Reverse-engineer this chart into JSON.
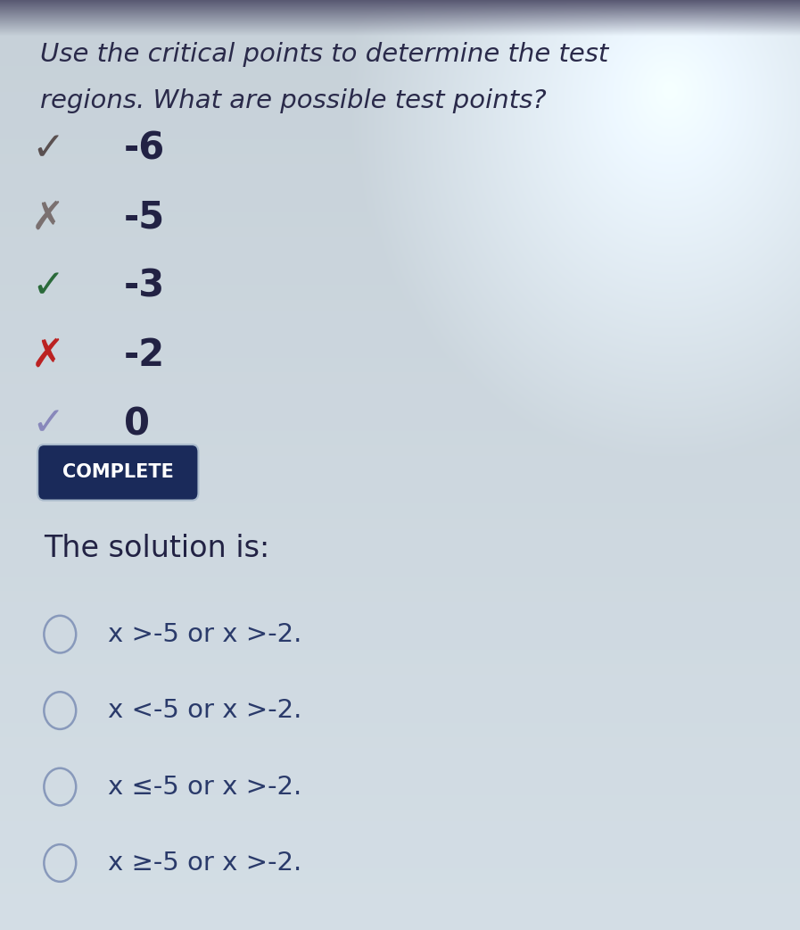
{
  "background_color_top": "#b8c4cc",
  "background_color_mid": "#c8d4da",
  "background_color_bottom": "#ccd4dc",
  "title_line1": "Use the critical points to determine the test",
  "title_line2": "regions. What are possible test points?",
  "title_color": "#2a2a4a",
  "title_fontsize": 21,
  "items": [
    {
      "symbol": "✓",
      "symbol_color": "#5a5050",
      "value": "-6"
    },
    {
      "symbol": "✗",
      "symbol_color": "#7a7070",
      "value": "-5"
    },
    {
      "symbol": "✓",
      "symbol_color": "#2a6a3a",
      "value": "-3"
    },
    {
      "symbol": "✗",
      "symbol_color": "#bb2222",
      "value": "-2"
    },
    {
      "symbol": "✓",
      "symbol_color": "#8888bb",
      "value": "0"
    }
  ],
  "item_fontsize": 30,
  "item_value_color": "#222244",
  "complete_label": "COMPLETE",
  "complete_bg": "#1a2a5a",
  "complete_text_color": "#ffffff",
  "complete_fontsize": 15,
  "solution_header": "The solution is:",
  "solution_header_color": "#222244",
  "solution_header_fontsize": 24,
  "choices": [
    "x >-5 or x >-2.",
    "x <-5 or x >-2.",
    "x ≤-5 or x >-2.",
    "x ≥-5 or x >-2."
  ],
  "choice_color": "#2a3a6a",
  "choice_fontsize": 21,
  "circle_color": "#8899bb"
}
